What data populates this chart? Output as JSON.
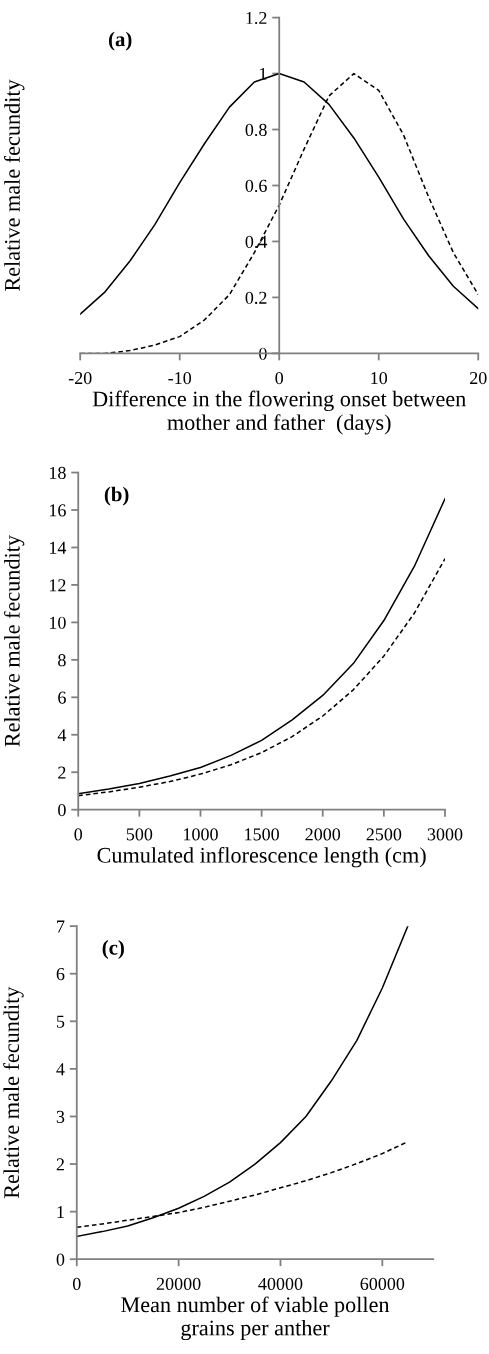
{
  "chart_data": [
    {
      "type": "line",
      "xlabel": "Difference in the flowering onset between\nmother and father  (days)",
      "ylabel": "Relative male fecundity",
      "annotations": [
        "(a)"
      ],
      "x": [
        -20,
        -17.5,
        -15,
        -12.5,
        -10,
        -7.5,
        -5,
        -2.5,
        0,
        2.5,
        5,
        7.5,
        10,
        12.5,
        15,
        17.5,
        20
      ],
      "series": [
        {
          "color": "#000000",
          "line_style": "solid",
          "values": [
            0.14,
            0.22,
            0.33,
            0.46,
            0.61,
            0.75,
            0.88,
            0.97,
            1.0,
            0.97,
            0.89,
            0.77,
            0.63,
            0.48,
            0.35,
            0.24,
            0.16
          ]
        },
        {
          "color": "#000000",
          "line_style": "dashed",
          "values": [
            0.0,
            0.0,
            0.01,
            0.03,
            0.06,
            0.12,
            0.21,
            0.36,
            0.53,
            0.73,
            0.92,
            1.0,
            0.94,
            0.78,
            0.56,
            0.36,
            0.21
          ]
        }
      ],
      "xlim": [
        -20,
        20
      ],
      "xticks": [
        -20,
        -10,
        0,
        10,
        20
      ],
      "ylim": [
        0,
        1.2
      ],
      "yticks": [
        0,
        0.2,
        0.4,
        0.6,
        0.8,
        1,
        1.2
      ],
      "grid": false,
      "legend": false
    },
    {
      "type": "line",
      "xlabel": "Cumulated inflorescence length (cm)",
      "ylabel": "Relative male fecundity",
      "annotations": [
        "(b)"
      ],
      "x": [
        0,
        250,
        500,
        750,
        1000,
        1250,
        1500,
        1750,
        2000,
        2250,
        2500,
        2750,
        3000
      ],
      "series": [
        {
          "color": "#000000",
          "line_style": "solid",
          "values": [
            0.85,
            1.1,
            1.4,
            1.8,
            2.25,
            2.9,
            3.7,
            4.8,
            6.1,
            7.8,
            10.1,
            13.0,
            16.6
          ]
        },
        {
          "color": "#000000",
          "line_style": "dashed",
          "values": [
            0.75,
            0.95,
            1.2,
            1.5,
            1.9,
            2.4,
            3.05,
            3.9,
            5.0,
            6.4,
            8.2,
            10.5,
            13.4
          ]
        }
      ],
      "xlim": [
        0,
        3000
      ],
      "xticks": [
        0,
        500,
        1000,
        1500,
        2000,
        2500,
        3000
      ],
      "ylim": [
        0,
        18
      ],
      "yticks": [
        0,
        2,
        4,
        6,
        8,
        10,
        12,
        14,
        16,
        18
      ],
      "grid": false,
      "legend": false
    },
    {
      "type": "line",
      "xlabel": "Mean number of viable pollen\ngrains per anther",
      "ylabel": "Relative male fecundity",
      "annotations": [
        "(c)"
      ],
      "x": [
        0,
        5000,
        10000,
        15000,
        20000,
        25000,
        30000,
        35000,
        40000,
        45000,
        50000,
        55000,
        60000,
        65000
      ],
      "series": [
        {
          "color": "#000000",
          "line_style": "solid",
          "values": [
            0.48,
            0.58,
            0.7,
            0.87,
            1.07,
            1.32,
            1.62,
            2.0,
            2.45,
            3.0,
            3.75,
            4.6,
            5.7,
            7.0
          ]
        },
        {
          "color": "#000000",
          "line_style": "dashed",
          "values": [
            0.67,
            0.74,
            0.82,
            0.9,
            0.98,
            1.09,
            1.22,
            1.35,
            1.5,
            1.65,
            1.82,
            2.01,
            2.22,
            2.47
          ]
        }
      ],
      "xlim": [
        0,
        70000
      ],
      "xticks": [
        0,
        20000,
        40000,
        60000
      ],
      "ylim": [
        0,
        7
      ],
      "yticks": [
        0,
        1,
        2,
        3,
        4,
        5,
        6,
        7
      ],
      "grid": false,
      "legend": false
    }
  ]
}
